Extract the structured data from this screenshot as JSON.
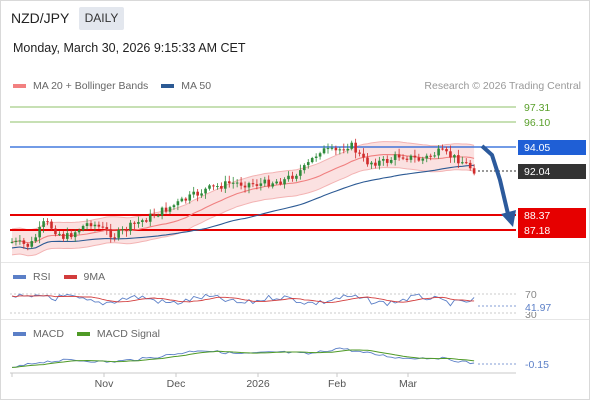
{
  "header": {
    "symbol": "NZD/JPY",
    "period": "DAILY",
    "datetime": "Monday, March 30, 2026 9:15:33 AM CET"
  },
  "main_legend": {
    "ma20_label": "MA 20 + Bollinger Bands",
    "ma50_label": "MA 50",
    "ma20_color": "#f28080",
    "ma50_color": "#2c5a94",
    "credit": "Research © 2026 Trading Central"
  },
  "levels": {
    "r2": "97.31",
    "r1": "96.10",
    "pivot": "94.05",
    "last": "92.04",
    "s1": "88.37",
    "s2": "87.18",
    "resistance_color": "#5aa02c",
    "pivot_color": "#1f5fd6",
    "support_color": "#e60000",
    "last_color": "#333333"
  },
  "rsi": {
    "label": "RSI",
    "ma_label": "9MA",
    "upper": "70",
    "value": "41.97",
    "lower": "30",
    "rsi_color": "#5b7fc7",
    "ma_color": "#d23c3c"
  },
  "macd": {
    "label": "MACD",
    "signal_label": "MACD Signal",
    "value": "-0.15",
    "macd_color": "#5b7fc7",
    "signal_color": "#4f9a26"
  },
  "x_axis": {
    "labels": [
      "Nov",
      "Dec",
      "2026",
      "Feb",
      "Mar"
    ]
  }
}
